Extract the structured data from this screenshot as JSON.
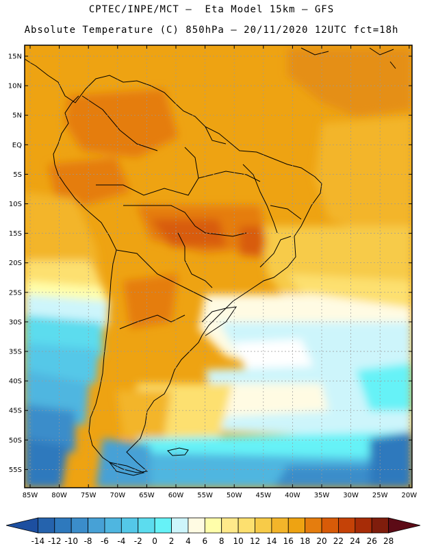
{
  "title_line1": "CPTEC/INPE/MCT –  Eta Model 15km – GFS",
  "title_line2": "Absolute Temperature (C) 850hPa – 20/11/2020 12UTC fct=18h",
  "lat_labels": [
    "15N",
    "10N",
    "5N",
    "EQ",
    "5S",
    "10S",
    "15S",
    "20S",
    "25S",
    "30S",
    "35S",
    "40S",
    "45S",
    "50S",
    "55S"
  ],
  "lon_labels": [
    "85W",
    "80W",
    "75W",
    "70W",
    "65W",
    "60W",
    "55W",
    "50W",
    "45W",
    "40W",
    "35W",
    "30W",
    "25W",
    "20W"
  ],
  "colorbar": {
    "ticks": [
      "-14",
      "-12",
      "-10",
      "-8",
      "-6",
      "-4",
      "-2",
      "0",
      "2",
      "4",
      "6",
      "8",
      "10",
      "12",
      "14",
      "16",
      "18",
      "20",
      "22",
      "24",
      "26",
      "28"
    ],
    "colors": [
      "#1d4fa0",
      "#2563ad",
      "#2e79bd",
      "#3b8dca",
      "#47a1d6",
      "#4fb6e0",
      "#54c8e8",
      "#5cdcee",
      "#66f2f7",
      "#cdf5fb",
      "#fffbe3",
      "#fffeaa",
      "#ffe98a",
      "#fde06f",
      "#f7cb48",
      "#f3b52a",
      "#eea312",
      "#e57d0e",
      "#d85b08",
      "#c54207",
      "#a72c07",
      "#7f1d0c",
      "#5c0b16"
    ]
  }
}
